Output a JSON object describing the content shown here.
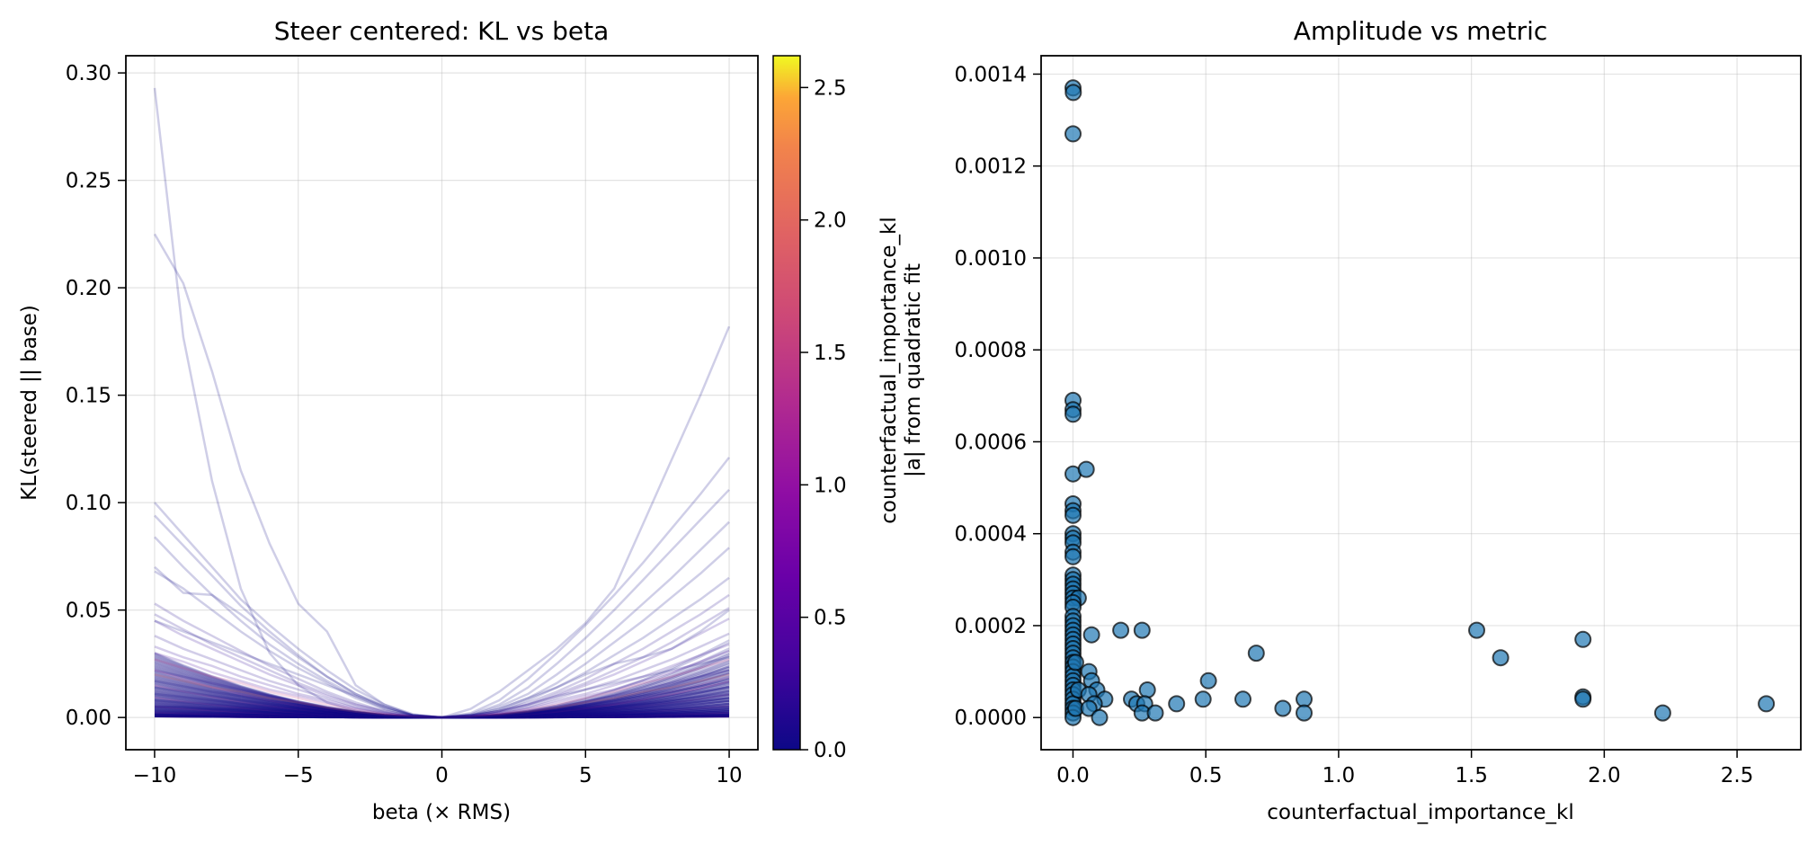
{
  "chart_data": [
    {
      "type": "line",
      "title": "Steer centered: KL vs beta",
      "xlabel": "beta (× RMS)",
      "ylabel": "KL(steered || base)",
      "xlim": [
        -11,
        11
      ],
      "ylim": [
        -0.015,
        0.308
      ],
      "xticks": [
        -10,
        -5,
        0,
        5,
        10
      ],
      "xtick_labels": [
        "−10",
        "−5",
        "0",
        "5",
        "10"
      ],
      "yticks": [
        0.0,
        0.05,
        0.1,
        0.15,
        0.2,
        0.25,
        0.3
      ],
      "ytick_labels": [
        "0.00",
        "0.05",
        "0.10",
        "0.15",
        "0.20",
        "0.25",
        "0.30"
      ],
      "grid": true,
      "line_alpha": 0.2,
      "x": [
        -10,
        -9,
        -8,
        -7,
        -6,
        -5,
        -4,
        -3,
        -2,
        -1,
        0,
        1,
        2,
        3,
        4,
        5,
        6,
        7,
        8,
        9,
        10
      ],
      "note": "Hundreds of curves colored by counterfactual_importance_kl (plasma colormap); most concentrated near KL 0.00-0.05",
      "series": [
        {
          "name": "curve-1",
          "color_value": 0.0,
          "values": [
            0.293,
            0.177,
            0.11,
            0.06,
            0.03,
            0.015,
            0.007,
            0.003,
            0.001,
            0.0002,
            0.0,
            0.0002,
            0.001,
            0.002,
            0.003,
            0.004,
            0.005,
            0.006,
            0.007,
            0.008,
            0.009
          ]
        },
        {
          "name": "curve-2",
          "color_value": 0.0,
          "values": [
            0.225,
            0.202,
            0.161,
            0.115,
            0.081,
            0.053,
            0.04,
            0.015,
            0.006,
            0.001,
            0.0,
            0.001,
            0.003,
            0.006,
            0.01,
            0.013,
            0.016,
            0.019,
            0.022,
            0.025,
            0.028
          ]
        },
        {
          "name": "curve-3",
          "color_value": 0.0,
          "values": [
            0.005,
            0.005,
            0.004,
            0.004,
            0.003,
            0.003,
            0.002,
            0.001,
            0.0005,
            0.0001,
            0.0,
            0.004,
            0.012,
            0.022,
            0.032,
            0.044,
            0.06,
            0.09,
            0.12,
            0.15,
            0.182
          ]
        },
        {
          "name": "curve-4",
          "color_value": 0.0,
          "values": [
            0.1,
            0.085,
            0.07,
            0.055,
            0.043,
            0.032,
            0.022,
            0.013,
            0.006,
            0.0015,
            0.0,
            0.002,
            0.008,
            0.018,
            0.03,
            0.043,
            0.057,
            0.072,
            0.088,
            0.104,
            0.121
          ]
        },
        {
          "name": "curve-5",
          "color_value": 0.0,
          "values": [
            0.094,
            0.08,
            0.066,
            0.052,
            0.04,
            0.029,
            0.019,
            0.011,
            0.005,
            0.0012,
            0.0,
            0.0015,
            0.006,
            0.014,
            0.025,
            0.037,
            0.05,
            0.064,
            0.078,
            0.092,
            0.106
          ]
        },
        {
          "name": "curve-6",
          "color_value": 0.0,
          "values": [
            0.084,
            0.07,
            0.057,
            0.045,
            0.034,
            0.025,
            0.017,
            0.01,
            0.004,
            0.001,
            0.0,
            0.0012,
            0.005,
            0.011,
            0.02,
            0.03,
            0.041,
            0.053,
            0.065,
            0.078,
            0.091
          ]
        },
        {
          "name": "curve-7",
          "color_value": 0.0,
          "values": [
            0.07,
            0.058,
            0.057,
            0.048,
            0.038,
            0.028,
            0.019,
            0.011,
            0.005,
            0.001,
            0.0,
            0.001,
            0.004,
            0.009,
            0.016,
            0.025,
            0.035,
            0.045,
            0.056,
            0.067,
            0.079
          ]
        },
        {
          "name": "curve-8",
          "color_value": 0.0,
          "values": [
            0.068,
            0.06,
            0.05,
            0.04,
            0.031,
            0.023,
            0.016,
            0.009,
            0.004,
            0.001,
            0.0,
            0.001,
            0.003,
            0.008,
            0.014,
            0.021,
            0.029,
            0.037,
            0.046,
            0.055,
            0.065
          ]
        },
        {
          "name": "curve-9",
          "color_value": 0.1,
          "values": [
            0.053,
            0.045,
            0.038,
            0.031,
            0.024,
            0.018,
            0.012,
            0.007,
            0.003,
            0.0008,
            0.0,
            0.0008,
            0.003,
            0.007,
            0.012,
            0.018,
            0.025,
            0.032,
            0.04,
            0.048,
            0.057
          ]
        },
        {
          "name": "curve-10",
          "color_value": 0.1,
          "values": [
            0.048,
            0.041,
            0.034,
            0.028,
            0.022,
            0.016,
            0.011,
            0.006,
            0.003,
            0.0007,
            0.0,
            0.0007,
            0.003,
            0.006,
            0.011,
            0.016,
            0.022,
            0.028,
            0.035,
            0.043,
            0.051
          ]
        },
        {
          "name": "curve-11",
          "color_value": 0.2,
          "values": [
            0.045,
            0.038,
            0.032,
            0.026,
            0.02,
            0.015,
            0.01,
            0.006,
            0.0025,
            0.0006,
            0.0,
            0.0006,
            0.0025,
            0.006,
            0.01,
            0.015,
            0.02,
            0.026,
            0.032,
            0.039,
            0.046
          ]
        },
        {
          "name": "curve-12",
          "color_value": 0.1,
          "values": [
            0.038,
            0.032,
            0.027,
            0.022,
            0.017,
            0.013,
            0.009,
            0.005,
            0.002,
            0.0005,
            0.0,
            0.0005,
            0.002,
            0.005,
            0.009,
            0.013,
            0.017,
            0.022,
            0.027,
            0.033,
            0.039
          ]
        },
        {
          "name": "curve-13",
          "color_value": 0.2,
          "values": [
            0.033,
            0.028,
            0.024,
            0.019,
            0.015,
            0.011,
            0.008,
            0.0045,
            0.002,
            0.0005,
            0.0,
            0.0005,
            0.002,
            0.0045,
            0.008,
            0.011,
            0.015,
            0.019,
            0.024,
            0.029,
            0.034
          ]
        },
        {
          "name": "curve-14",
          "color_value": 1.5,
          "values": [
            0.027,
            0.023,
            0.019,
            0.016,
            0.012,
            0.009,
            0.006,
            0.0036,
            0.0016,
            0.0004,
            0.0,
            0.0004,
            0.0016,
            0.0036,
            0.006,
            0.009,
            0.012,
            0.016,
            0.019,
            0.023,
            0.027
          ]
        },
        {
          "name": "curve-15",
          "color_value": 0.3,
          "values": [
            0.03,
            0.026,
            0.021,
            0.017,
            0.013,
            0.01,
            0.007,
            0.004,
            0.0018,
            0.0004,
            0.0,
            0.0004,
            0.0018,
            0.004,
            0.007,
            0.01,
            0.013,
            0.017,
            0.021,
            0.026,
            0.031
          ]
        },
        {
          "name": "curve-16",
          "color_value": 0.1,
          "values": [
            0.022,
            0.019,
            0.016,
            0.013,
            0.01,
            0.0075,
            0.005,
            0.003,
            0.0013,
            0.0003,
            0.0,
            0.0003,
            0.0013,
            0.003,
            0.005,
            0.0075,
            0.01,
            0.013,
            0.016,
            0.019,
            0.022
          ]
        },
        {
          "name": "curve-17",
          "color_value": 2.0,
          "values": [
            0.02,
            0.017,
            0.014,
            0.012,
            0.009,
            0.007,
            0.0045,
            0.0027,
            0.0012,
            0.0003,
            0.0,
            0.0003,
            0.0012,
            0.0027,
            0.0045,
            0.007,
            0.009,
            0.012,
            0.014,
            0.017,
            0.02
          ]
        },
        {
          "name": "curve-18",
          "color_value": 0.0,
          "values": [
            0.017,
            0.0145,
            0.012,
            0.01,
            0.0077,
            0.0058,
            0.004,
            0.0023,
            0.001,
            0.0002,
            0.0,
            0.0002,
            0.001,
            0.0023,
            0.004,
            0.0058,
            0.0077,
            0.01,
            0.012,
            0.0145,
            0.017
          ]
        },
        {
          "name": "curve-19",
          "color_value": 0.0,
          "values": [
            0.014,
            0.012,
            0.01,
            0.008,
            0.0063,
            0.0047,
            0.0033,
            0.0019,
            0.0008,
            0.0002,
            0.0,
            0.0002,
            0.0008,
            0.0019,
            0.0033,
            0.0047,
            0.0063,
            0.008,
            0.01,
            0.012,
            0.014
          ]
        },
        {
          "name": "curve-20",
          "color_value": 0.0,
          "values": [
            0.011,
            0.0095,
            0.008,
            0.0065,
            0.005,
            0.0037,
            0.0026,
            0.0015,
            0.0007,
            0.0002,
            0.0,
            0.0002,
            0.0007,
            0.0015,
            0.0026,
            0.0037,
            0.005,
            0.0065,
            0.008,
            0.0095,
            0.011
          ]
        },
        {
          "name": "curve-21",
          "color_value": 0.0,
          "values": [
            0.008,
            0.007,
            0.006,
            0.0048,
            0.0037,
            0.0027,
            0.0019,
            0.0011,
            0.0005,
            0.0001,
            0.0,
            0.0001,
            0.0005,
            0.0011,
            0.0019,
            0.0027,
            0.0037,
            0.0048,
            0.006,
            0.007,
            0.008
          ]
        },
        {
          "name": "curve-22",
          "color_value": 0.0,
          "values": [
            0.005,
            0.0043,
            0.0036,
            0.003,
            0.0023,
            0.0017,
            0.0012,
            0.0007,
            0.0003,
            0.0001,
            0.0,
            0.0001,
            0.0003,
            0.0007,
            0.0012,
            0.0017,
            0.0023,
            0.003,
            0.0036,
            0.0043,
            0.005
          ]
        },
        {
          "name": "curve-23",
          "color_value": 0.0,
          "values": [
            0.045,
            0.04,
            0.035,
            0.03,
            0.025,
            0.02,
            0.015,
            0.01,
            0.005,
            0.001,
            0.0,
            0.001,
            0.004,
            0.009,
            0.014,
            0.02,
            0.025,
            0.028,
            0.032,
            0.04,
            0.05
          ]
        }
      ],
      "colorbar": {
        "label_line1": "counterfactual_importance_kl",
        "label_line2": "|a| from quadratic fit",
        "range": [
          0.0,
          2.62
        ],
        "ticks": [
          0.0,
          0.5,
          1.0,
          1.5,
          2.0,
          2.5
        ],
        "tick_labels": [
          "0.0",
          "0.5",
          "1.0",
          "1.5",
          "2.0",
          "2.5"
        ],
        "colormap": "plasma"
      }
    },
    {
      "type": "scatter",
      "title": "Amplitude vs metric",
      "xlabel": "counterfactual_importance_kl",
      "ylabel": "",
      "xlim": [
        -0.12,
        2.74
      ],
      "ylim": [
        -7e-05,
        0.00144
      ],
      "xticks": [
        0.0,
        0.5,
        1.0,
        1.5,
        2.0,
        2.5
      ],
      "xtick_labels": [
        "0.0",
        "0.5",
        "1.0",
        "1.5",
        "2.0",
        "2.5"
      ],
      "yticks": [
        0.0,
        0.0002,
        0.0004,
        0.0006,
        0.0008,
        0.001,
        0.0012,
        0.0014
      ],
      "ytick_labels": [
        "0.0000",
        "0.0002",
        "0.0004",
        "0.0006",
        "0.0008",
        "0.0010",
        "0.0012",
        "0.0014"
      ],
      "grid": true,
      "marker_color": "#1f77b4",
      "marker_alpha": 0.7,
      "marker_edge": "#000000",
      "points": [
        [
          0.0,
          0.00137
        ],
        [
          0.001,
          0.00136
        ],
        [
          0.0,
          0.00127
        ],
        [
          0.0,
          0.00069
        ],
        [
          0.0,
          0.00067
        ],
        [
          0.0,
          0.00066
        ],
        [
          0.0,
          0.00053
        ],
        [
          0.05,
          0.00054
        ],
        [
          0.0,
          0.000465
        ],
        [
          0.0,
          0.00045
        ],
        [
          0.0,
          0.00044
        ],
        [
          0.0,
          0.0004
        ],
        [
          0.0,
          0.00039
        ],
        [
          0.0,
          0.00038
        ],
        [
          0.0,
          0.00036
        ],
        [
          0.0,
          0.00035
        ],
        [
          0.0,
          0.00031
        ],
        [
          0.0,
          0.0003
        ],
        [
          0.0,
          0.00029
        ],
        [
          0.0,
          0.00028
        ],
        [
          0.0,
          0.00027
        ],
        [
          0.0,
          0.00026
        ],
        [
          0.02,
          0.00026
        ],
        [
          0.0,
          0.00025
        ],
        [
          0.0,
          0.00024
        ],
        [
          0.0,
          0.00022
        ],
        [
          0.0,
          0.00021
        ],
        [
          0.0,
          0.0002
        ],
        [
          0.0,
          0.00019
        ],
        [
          0.0,
          0.00018
        ],
        [
          0.0,
          0.00017
        ],
        [
          0.0,
          0.00016
        ],
        [
          0.0,
          0.00015
        ],
        [
          0.0,
          0.00014
        ],
        [
          0.0,
          0.00013
        ],
        [
          0.0,
          0.00012
        ],
        [
          0.0,
          0.00011
        ],
        [
          0.0,
          0.0001
        ],
        [
          0.0,
          9e-05
        ],
        [
          0.0,
          8e-05
        ],
        [
          0.0,
          7e-05
        ],
        [
          0.0,
          6e-05
        ],
        [
          0.0,
          5e-05
        ],
        [
          0.0,
          4e-05
        ],
        [
          0.0,
          3e-05
        ],
        [
          0.0,
          2e-05
        ],
        [
          0.0,
          1e-05
        ],
        [
          0.0,
          0.0
        ],
        [
          0.01,
          2e-05
        ],
        [
          0.02,
          6e-05
        ],
        [
          0.01,
          0.00012
        ],
        [
          0.07,
          0.00018
        ],
        [
          0.18,
          0.00019
        ],
        [
          0.26,
          0.00019
        ],
        [
          0.06,
          0.0001
        ],
        [
          0.07,
          8e-05
        ],
        [
          0.09,
          6e-05
        ],
        [
          0.06,
          5e-05
        ],
        [
          0.12,
          4e-05
        ],
        [
          0.08,
          3e-05
        ],
        [
          0.06,
          2e-05
        ],
        [
          0.1,
          0.0
        ],
        [
          0.22,
          4e-05
        ],
        [
          0.24,
          3e-05
        ],
        [
          0.28,
          6e-05
        ],
        [
          0.27,
          3e-05
        ],
        [
          0.26,
          1e-05
        ],
        [
          0.31,
          1e-05
        ],
        [
          0.39,
          3e-05
        ],
        [
          0.49,
          4e-05
        ],
        [
          0.51,
          8e-05
        ],
        [
          0.64,
          4e-05
        ],
        [
          0.69,
          0.00014
        ],
        [
          0.79,
          2e-05
        ],
        [
          0.87,
          4e-05
        ],
        [
          0.87,
          1e-05
        ],
        [
          1.52,
          0.00019
        ],
        [
          1.61,
          0.00013
        ],
        [
          1.92,
          0.00017
        ],
        [
          1.92,
          4.5e-05
        ],
        [
          1.92,
          4e-05
        ],
        [
          2.22,
          1e-05
        ],
        [
          2.61,
          3e-05
        ]
      ]
    }
  ]
}
